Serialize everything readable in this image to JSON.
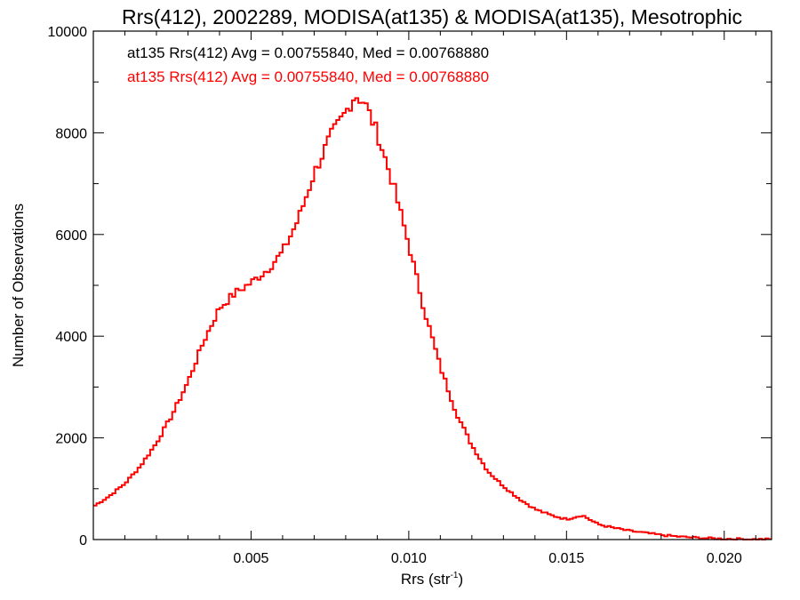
{
  "chart_data": {
    "type": "histogram-step",
    "title": "Rrs(412), 2002289, MODISA(at135) & MODISA(at135), Mesotrophic",
    "xlabel": "Rrs (str",
    "xlabel_sup": "-1",
    "xlabel_close": ")",
    "ylabel": "Number of Observations",
    "xlim": [
      0.0,
      0.0215
    ],
    "ylim": [
      0,
      10000
    ],
    "x_ticks": [
      0.005,
      0.01,
      0.015,
      0.02
    ],
    "x_tick_labels": [
      "0.005",
      "0.010",
      "0.015",
      "0.020"
    ],
    "y_ticks": [
      0,
      2000,
      4000,
      6000,
      8000,
      10000
    ],
    "y_tick_labels": [
      "0",
      "2000",
      "4000",
      "6000",
      "8000",
      "10000"
    ],
    "grid": false,
    "annotations": [
      {
        "text": "at135 Rrs(412) Avg = 0.00755840, Med = 0.00768880",
        "color": "#000000"
      },
      {
        "text": "at135 Rrs(412) Avg = 0.00755840, Med = 0.00768880",
        "color": "#ff0000"
      }
    ],
    "series": [
      {
        "color_hex": "#ff0000",
        "points": [
          [
            0.0,
            650
          ],
          [
            0.0005,
            850
          ],
          [
            0.001,
            1100
          ],
          [
            0.0015,
            1450
          ],
          [
            0.002,
            1900
          ],
          [
            0.0025,
            2450
          ],
          [
            0.003,
            3100
          ],
          [
            0.0035,
            3900
          ],
          [
            0.004,
            4550
          ],
          [
            0.0045,
            4850
          ],
          [
            0.005,
            5050
          ],
          [
            0.0055,
            5300
          ],
          [
            0.006,
            5650
          ],
          [
            0.0065,
            6300
          ],
          [
            0.007,
            7200
          ],
          [
            0.0075,
            7900
          ],
          [
            0.008,
            8400
          ],
          [
            0.0083,
            8750
          ],
          [
            0.0086,
            8600
          ],
          [
            0.009,
            8000
          ],
          [
            0.0095,
            7000
          ],
          [
            0.01,
            5800
          ],
          [
            0.0105,
            4500
          ],
          [
            0.011,
            3400
          ],
          [
            0.0115,
            2500
          ],
          [
            0.012,
            1850
          ],
          [
            0.0125,
            1350
          ],
          [
            0.013,
            1050
          ],
          [
            0.0135,
            800
          ],
          [
            0.014,
            600
          ],
          [
            0.0145,
            480
          ],
          [
            0.015,
            400
          ],
          [
            0.0155,
            480
          ],
          [
            0.016,
            300
          ],
          [
            0.0165,
            230
          ],
          [
            0.017,
            170
          ],
          [
            0.0175,
            130
          ],
          [
            0.018,
            90
          ],
          [
            0.0185,
            60
          ],
          [
            0.019,
            40
          ],
          [
            0.0195,
            25
          ],
          [
            0.02,
            15
          ],
          [
            0.0205,
            10
          ],
          [
            0.021,
            5
          ],
          [
            0.0215,
            5
          ]
        ]
      }
    ]
  }
}
